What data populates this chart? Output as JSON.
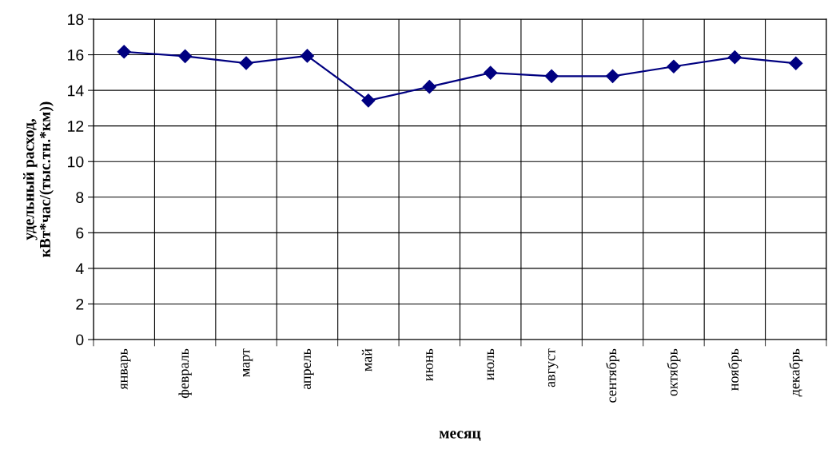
{
  "chart_data": {
    "type": "line",
    "xlabel": "месяц",
    "ylabel": "удельный расход,\nкВт*час/(тыс.тн.*км))",
    "categories": [
      "январь",
      "февраль",
      "март",
      "апрель",
      "май",
      "июнь",
      "июль",
      "август",
      "сентябрь",
      "октябрь",
      "ноябрь",
      "декабрь"
    ],
    "series": [
      {
        "color": "#000080",
        "values": [
          16.17,
          15.92,
          15.53,
          15.94,
          13.43,
          14.2,
          14.99,
          14.8,
          14.8,
          15.34,
          15.86,
          15.52
        ]
      }
    ],
    "ylim": [
      0,
      18
    ],
    "yticks": [
      0,
      2,
      4,
      6,
      8,
      10,
      12,
      14,
      16,
      18
    ],
    "grid": true,
    "marker": "diamond",
    "line_style": "solid"
  }
}
